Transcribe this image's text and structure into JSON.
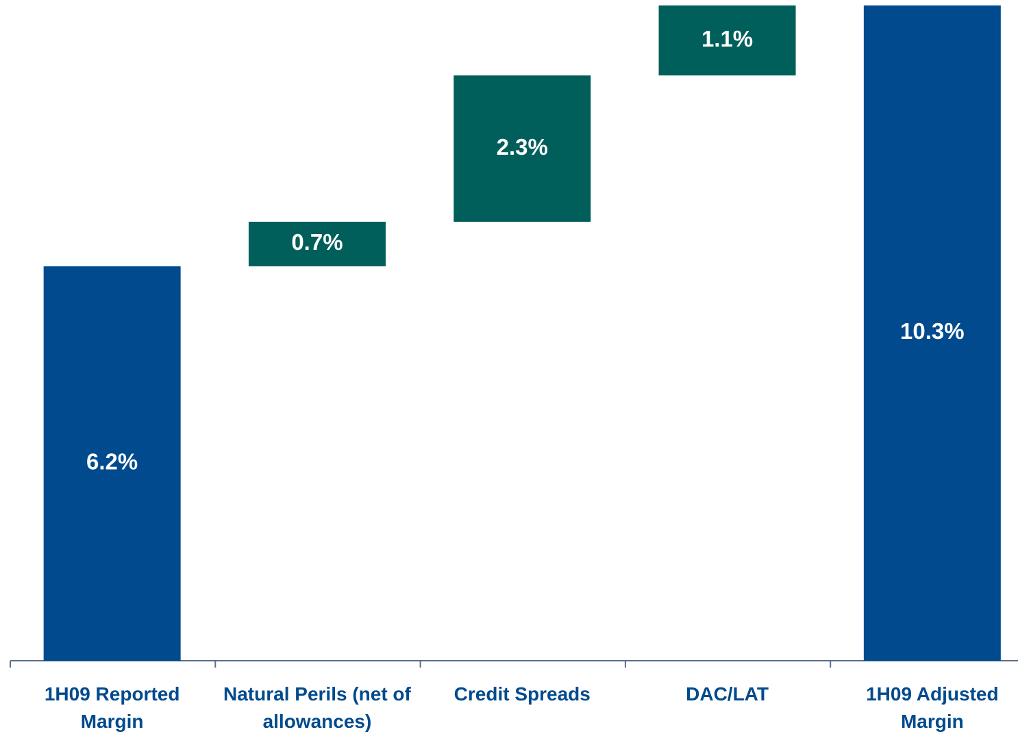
{
  "chart_data": {
    "type": "waterfall",
    "categories": [
      "1H09 Reported Margin",
      "Natural Perils (net of allowances)",
      "Credit Spreads",
      "DAC/LAT",
      "1H09 Adjusted Margin"
    ],
    "values": [
      6.2,
      0.7,
      2.3,
      1.1,
      10.3
    ],
    "value_labels": [
      "6.2%",
      "0.7%",
      "2.3%",
      "1.1%",
      "10.3%"
    ],
    "total_color": "#004a8d",
    "delta_color": "#005f5a",
    "ylim": [
      0,
      10.3
    ]
  }
}
